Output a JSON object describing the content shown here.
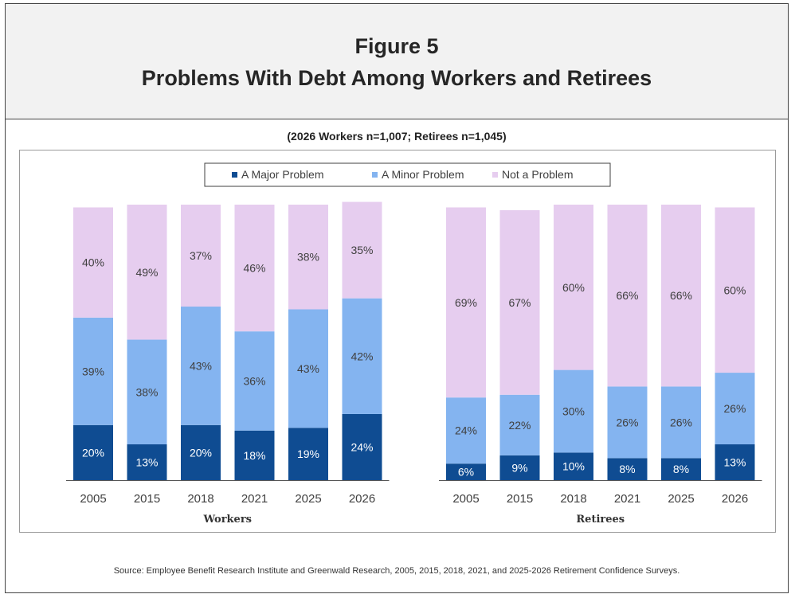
{
  "header": {
    "figure_label": "Figure 5",
    "title": "Problems With Debt Among Workers and Retirees"
  },
  "subtitle": "(2026 Workers n=1,007; Retirees n=1,045)",
  "source": "Source:  Employee Benefit Research Institute and Greenwald Research, 2005, 2015, 2018, 2021, and 2025-2026 Retirement Confidence Surveys.",
  "colors": {
    "major": "#0F4C92",
    "minor": "#84B4F0",
    "not": "#E6CDEF",
    "label_light": "#ffffff",
    "label_dark": "#404040"
  },
  "chart_data": {
    "type": "bar",
    "stacked": true,
    "percent_format": "%",
    "legend": [
      "A Major Problem",
      "A Minor Problem",
      "Not a Problem"
    ],
    "legend_position": "top-center",
    "ylim": [
      0,
      100
    ],
    "groups": [
      {
        "label": "Workers",
        "categories": [
          "2005",
          "2015",
          "2018",
          "2021",
          "2025",
          "2026"
        ],
        "series": [
          {
            "name": "A Major Problem",
            "values": [
              20,
              13,
              20,
              18,
              19,
              24
            ]
          },
          {
            "name": "A Minor Problem",
            "values": [
              39,
              38,
              43,
              36,
              43,
              42
            ]
          },
          {
            "name": "Not a Problem",
            "values": [
              40,
              49,
              37,
              46,
              38,
              35
            ]
          }
        ]
      },
      {
        "label": "Retirees",
        "categories": [
          "2005",
          "2015",
          "2018",
          "2021",
          "2025",
          "2026"
        ],
        "series": [
          {
            "name": "A Major Problem",
            "values": [
              6,
              9,
              10,
              8,
              8,
              13
            ]
          },
          {
            "name": "A Minor Problem",
            "values": [
              24,
              22,
              30,
              26,
              26,
              26
            ]
          },
          {
            "name": "Not a Problem",
            "values": [
              69,
              67,
              60,
              66,
              66,
              60
            ]
          }
        ]
      }
    ]
  }
}
